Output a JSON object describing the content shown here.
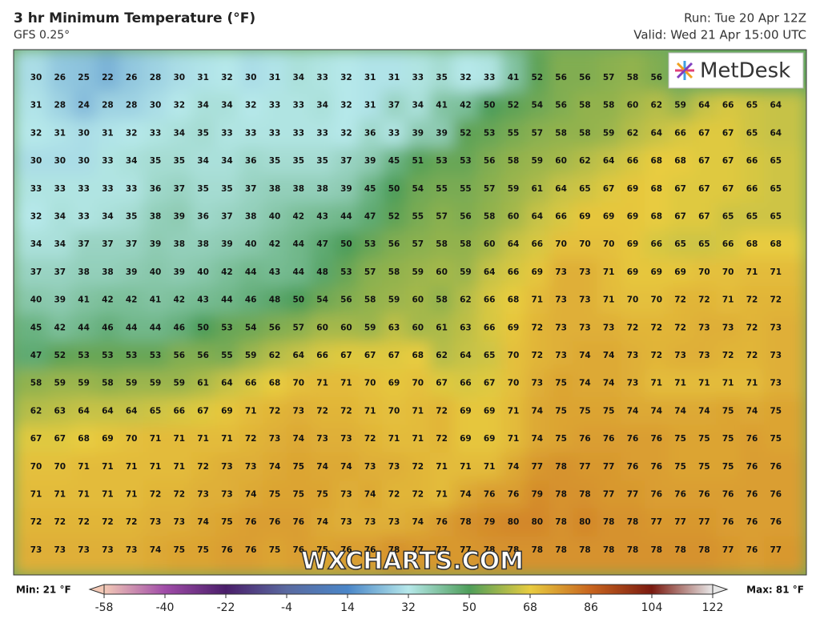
{
  "header": {
    "title": "3 hr Minimum Temperature (°F)",
    "model": "GFS 0.25°",
    "run": "Run: Tue 20 Apr 12Z",
    "valid": "Valid: Wed 21 Apr 15:00 UTC"
  },
  "logo": "MetDesk",
  "watermark": "WXCHARTS.COM",
  "legend": {
    "min": "Min: 21 °F",
    "max": "Max: 81 °F",
    "ticks": [
      -58,
      -40,
      -22,
      -4,
      14,
      32,
      50,
      68,
      86,
      104,
      122
    ],
    "colors": [
      "#f3c9b6",
      "#a04ca8",
      "#4a1e6a",
      "#5a6aa0",
      "#4a86c8",
      "#b6e8ea",
      "#4e9e5a",
      "#e8cc40",
      "#c8641e",
      "#7a1a10",
      "#e8e8e8"
    ]
  },
  "grid": {
    "rows": [
      [
        30,
        26,
        25,
        22,
        26,
        28,
        30,
        31,
        32,
        30,
        31,
        34,
        33,
        32,
        31,
        31,
        33,
        35,
        32,
        33,
        41,
        52,
        56,
        56,
        57,
        58,
        56
      ],
      [
        31,
        28,
        24,
        28,
        28,
        30,
        32,
        34,
        34,
        32,
        33,
        33,
        34,
        32,
        31,
        37,
        34,
        41,
        42,
        50,
        52,
        54,
        56,
        58,
        58,
        60,
        62,
        59,
        64,
        66,
        65,
        64
      ],
      [
        32,
        31,
        30,
        31,
        32,
        33,
        34,
        35,
        33,
        33,
        33,
        33,
        33,
        32,
        36,
        33,
        39,
        39,
        52,
        53,
        55,
        57,
        58,
        58,
        59,
        62,
        64,
        66,
        67,
        67,
        65,
        64
      ],
      [
        30,
        30,
        30,
        33,
        34,
        35,
        35,
        34,
        34,
        36,
        35,
        35,
        35,
        37,
        39,
        45,
        51,
        53,
        53,
        56,
        58,
        59,
        60,
        62,
        64,
        66,
        68,
        68,
        67,
        67,
        66,
        65
      ],
      [
        33,
        33,
        33,
        33,
        33,
        36,
        37,
        35,
        35,
        37,
        38,
        38,
        38,
        39,
        45,
        50,
        54,
        55,
        55,
        57,
        59,
        61,
        64,
        65,
        67,
        69,
        68,
        67,
        67,
        67,
        66,
        65
      ],
      [
        32,
        34,
        33,
        34,
        35,
        38,
        39,
        36,
        37,
        38,
        40,
        42,
        43,
        44,
        47,
        52,
        55,
        57,
        56,
        58,
        60,
        64,
        66,
        69,
        69,
        69,
        68,
        67,
        67,
        65,
        65,
        65
      ],
      [
        34,
        34,
        37,
        37,
        37,
        39,
        38,
        38,
        39,
        40,
        42,
        44,
        47,
        50,
        53,
        56,
        57,
        58,
        58,
        60,
        64,
        66,
        70,
        70,
        70,
        69,
        66,
        65,
        65,
        66,
        68,
        68
      ],
      [
        37,
        37,
        38,
        38,
        39,
        40,
        39,
        40,
        42,
        44,
        43,
        44,
        48,
        53,
        57,
        58,
        59,
        60,
        59,
        64,
        66,
        69,
        73,
        73,
        71,
        69,
        69,
        69,
        70,
        70,
        71,
        71
      ],
      [
        40,
        39,
        41,
        42,
        42,
        41,
        42,
        43,
        44,
        46,
        48,
        50,
        54,
        56,
        58,
        59,
        60,
        58,
        62,
        66,
        68,
        71,
        73,
        73,
        71,
        70,
        70,
        72,
        72,
        71,
        72,
        72
      ],
      [
        45,
        42,
        44,
        46,
        44,
        44,
        46,
        50,
        53,
        54,
        56,
        57,
        60,
        60,
        59,
        63,
        60,
        61,
        63,
        66,
        69,
        72,
        73,
        73,
        73,
        72,
        72,
        72,
        73,
        73,
        72,
        73
      ],
      [
        47,
        52,
        53,
        53,
        53,
        53,
        56,
        56,
        55,
        59,
        62,
        64,
        66,
        67,
        67,
        67,
        68,
        62,
        64,
        65,
        70,
        72,
        73,
        74,
        74,
        73,
        72,
        73,
        73,
        72,
        72,
        73
      ],
      [
        58,
        59,
        59,
        58,
        59,
        59,
        59,
        61,
        64,
        66,
        68,
        70,
        71,
        71,
        70,
        69,
        70,
        67,
        66,
        67,
        70,
        73,
        75,
        74,
        74,
        73,
        71,
        71,
        71,
        71,
        71,
        73
      ],
      [
        62,
        63,
        64,
        64,
        64,
        65,
        66,
        67,
        69,
        71,
        72,
        73,
        72,
        72,
        71,
        70,
        71,
        72,
        69,
        69,
        71,
        74,
        75,
        75,
        75,
        74,
        74,
        74,
        74,
        75,
        74,
        75
      ],
      [
        67,
        67,
        68,
        69,
        70,
        71,
        71,
        71,
        71,
        72,
        73,
        74,
        73,
        73,
        72,
        71,
        71,
        72,
        69,
        69,
        71,
        74,
        75,
        76,
        76,
        76,
        76,
        75,
        75,
        75,
        76,
        75
      ],
      [
        70,
        70,
        71,
        71,
        71,
        71,
        71,
        72,
        73,
        73,
        74,
        75,
        74,
        74,
        73,
        73,
        72,
        71,
        71,
        71,
        74,
        77,
        78,
        77,
        77,
        76,
        76,
        75,
        75,
        75,
        76,
        76
      ],
      [
        71,
        71,
        71,
        71,
        71,
        72,
        72,
        73,
        73,
        74,
        75,
        75,
        75,
        73,
        74,
        72,
        72,
        71,
        74,
        76,
        76,
        79,
        78,
        78,
        77,
        77,
        76,
        76,
        76,
        76,
        76,
        76
      ],
      [
        72,
        72,
        72,
        72,
        72,
        73,
        73,
        74,
        75,
        76,
        76,
        76,
        74,
        73,
        73,
        73,
        74,
        76,
        78,
        79,
        80,
        80,
        78,
        80,
        78,
        78,
        77,
        77,
        77,
        76,
        76,
        76
      ],
      [
        73,
        73,
        73,
        73,
        73,
        74,
        75,
        75,
        76,
        76,
        75,
        76,
        75,
        76,
        76,
        78,
        77,
        77,
        77,
        78,
        78,
        78,
        78,
        78,
        78,
        78,
        78,
        78,
        78,
        77,
        76,
        77
      ]
    ]
  }
}
